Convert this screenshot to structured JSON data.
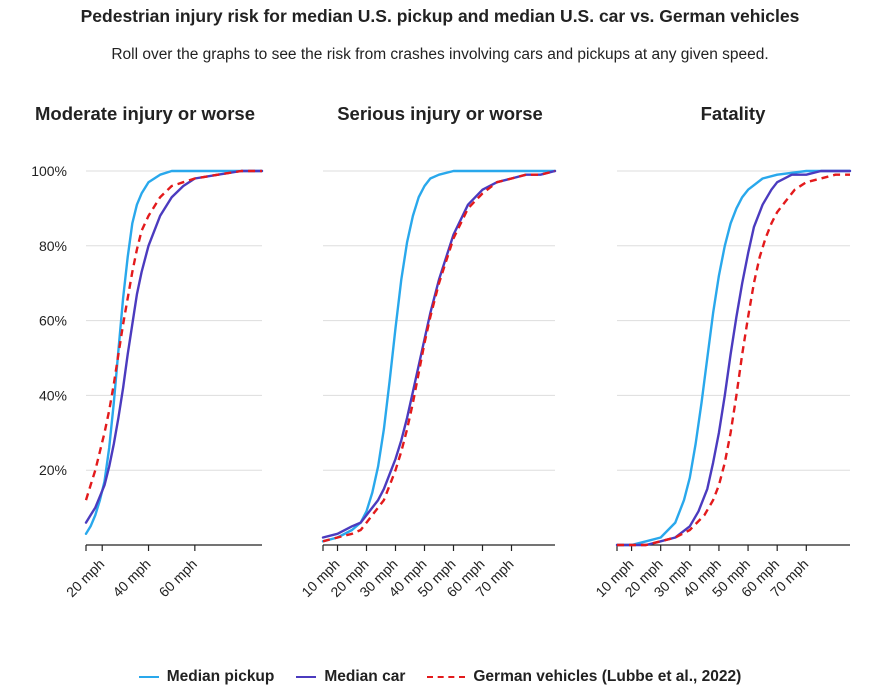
{
  "title": "Pedestrian injury risk for median U.S. pickup and median U.S. car vs. German vehicles",
  "subtitle": "Roll over the graphs to see the risk from crashes involving cars and pickups at any given speed.",
  "colors": {
    "pickup": "#29a8ec",
    "car": "#4b3bbf",
    "german": "#e31a1c",
    "grid": "#dddddd",
    "axis": "#222222"
  },
  "legend": [
    {
      "key": "pickup",
      "label": "Median pickup",
      "dashed": false
    },
    {
      "key": "car",
      "label": "Median car",
      "dashed": false
    },
    {
      "key": "german",
      "label": "German vehicles (Lubbe et al., 2022)",
      "dashed": true
    }
  ],
  "chart_data": [
    {
      "type": "line",
      "title": "Moderate injury or worse",
      "xlim": [
        13,
        89
      ],
      "ylim": [
        0,
        100
      ],
      "xticks": [
        20,
        40,
        60
      ],
      "xtick_labels": [
        "20 mph",
        "40 mph",
        "60 mph"
      ],
      "yticks": [
        20,
        40,
        60,
        80,
        100
      ],
      "ytick_labels": [
        "20%",
        "40%",
        "60%",
        "80%",
        "100%"
      ],
      "series": [
        {
          "name": "Median pickup",
          "key": "pickup",
          "x": [
            13,
            15,
            17,
            19,
            21,
            23,
            25,
            27,
            29,
            31,
            33,
            35,
            37,
            40,
            45,
            50,
            55,
            60,
            70,
            80,
            89
          ],
          "values": [
            3,
            5,
            8,
            12,
            17,
            26,
            38,
            52,
            66,
            77,
            86,
            91,
            94,
            97,
            99,
            100,
            100,
            100,
            100,
            100,
            100
          ]
        },
        {
          "name": "Median car",
          "key": "car",
          "x": [
            13,
            15,
            17,
            19,
            21,
            23,
            25,
            27,
            29,
            31,
            33,
            35,
            37,
            40,
            45,
            50,
            55,
            60,
            70,
            80,
            89
          ],
          "values": [
            6,
            8,
            10,
            13,
            16,
            21,
            27,
            34,
            42,
            51,
            59,
            67,
            73,
            80,
            88,
            93,
            96,
            98,
            99,
            100,
            100
          ]
        },
        {
          "name": "German vehicles (Lubbe et al., 2022)",
          "key": "german",
          "x": [
            13,
            15,
            17,
            19,
            21,
            23,
            25,
            27,
            29,
            31,
            33,
            35,
            37,
            40,
            45,
            50,
            55,
            60,
            70,
            80,
            89
          ],
          "values": [
            12,
            16,
            20,
            25,
            30,
            36,
            43,
            51,
            59,
            66,
            73,
            79,
            84,
            88,
            93,
            96,
            97,
            98,
            99,
            100,
            100
          ]
        }
      ]
    },
    {
      "type": "line",
      "title": "Serious injury or worse",
      "xlim": [
        5,
        85
      ],
      "ylim": [
        0,
        100
      ],
      "xticks": [
        10,
        20,
        30,
        40,
        50,
        60,
        70
      ],
      "xtick_labels": [
        "10 mph",
        "20 mph",
        "30 mph",
        "40 mph",
        "50 mph",
        "60 mph",
        "70 mph"
      ],
      "yticks": [
        20,
        40,
        60,
        80,
        100
      ],
      "ytick_labels": [
        "20%",
        "40%",
        "60%",
        "80%",
        "100%"
      ],
      "series": [
        {
          "name": "Median pickup",
          "key": "pickup",
          "x": [
            5,
            10,
            15,
            18,
            20,
            22,
            24,
            26,
            28,
            30,
            32,
            34,
            36,
            38,
            40,
            42,
            45,
            50,
            55,
            60,
            70,
            85
          ],
          "values": [
            1,
            2,
            4,
            6,
            9,
            14,
            21,
            31,
            44,
            58,
            71,
            81,
            88,
            93,
            96,
            98,
            99,
            100,
            100,
            100,
            100,
            100
          ]
        },
        {
          "name": "Median car",
          "key": "car",
          "x": [
            5,
            10,
            15,
            18,
            20,
            22,
            24,
            26,
            28,
            30,
            32,
            34,
            36,
            38,
            40,
            42,
            45,
            50,
            55,
            60,
            65,
            70,
            75,
            80,
            85
          ],
          "values": [
            2,
            3,
            5,
            6,
            8,
            10,
            12,
            15,
            19,
            23,
            28,
            34,
            41,
            48,
            55,
            62,
            71,
            83,
            91,
            95,
            97,
            98,
            99,
            99,
            100
          ]
        },
        {
          "name": "German vehicles (Lubbe et al., 2022)",
          "key": "german",
          "x": [
            5,
            10,
            15,
            18,
            20,
            22,
            24,
            26,
            28,
            30,
            32,
            34,
            36,
            38,
            40,
            42,
            45,
            50,
            55,
            60,
            65,
            70,
            75,
            80,
            85
          ],
          "values": [
            1,
            2,
            3,
            4,
            6,
            8,
            10,
            12,
            16,
            20,
            25,
            31,
            38,
            46,
            54,
            61,
            70,
            82,
            90,
            94,
            97,
            98,
            99,
            99,
            100
          ]
        }
      ]
    },
    {
      "type": "line",
      "title": "Fatality",
      "xlim": [
        5,
        85
      ],
      "ylim": [
        0,
        100
      ],
      "xticks": [
        10,
        20,
        30,
        40,
        50,
        60,
        70
      ],
      "xtick_labels": [
        "10 mph",
        "20 mph",
        "30 mph",
        "40 mph",
        "50 mph",
        "60 mph",
        "70 mph"
      ],
      "yticks": [
        20,
        40,
        60,
        80,
        100
      ],
      "ytick_labels": [
        "20%",
        "40%",
        "60%",
        "80%",
        "100%"
      ],
      "series": [
        {
          "name": "Median pickup",
          "key": "pickup",
          "x": [
            5,
            10,
            15,
            20,
            25,
            28,
            30,
            32,
            34,
            36,
            38,
            40,
            42,
            44,
            46,
            48,
            50,
            55,
            60,
            70,
            85
          ],
          "values": [
            0,
            0,
            1,
            2,
            6,
            12,
            18,
            27,
            38,
            50,
            62,
            72,
            80,
            86,
            90,
            93,
            95,
            98,
            99,
            100,
            100
          ]
        },
        {
          "name": "Median car",
          "key": "car",
          "x": [
            5,
            10,
            15,
            20,
            25,
            30,
            33,
            36,
            38,
            40,
            42,
            44,
            46,
            48,
            50,
            52,
            55,
            58,
            60,
            65,
            70,
            75,
            85
          ],
          "values": [
            0,
            0,
            0,
            1,
            2,
            5,
            9,
            15,
            22,
            30,
            40,
            51,
            61,
            70,
            78,
            85,
            91,
            95,
            97,
            99,
            99,
            100,
            100
          ]
        },
        {
          "name": "German vehicles (Lubbe et al., 2022)",
          "key": "german",
          "x": [
            5,
            10,
            15,
            20,
            25,
            30,
            35,
            38,
            40,
            42,
            44,
            46,
            48,
            50,
            52,
            54,
            56,
            58,
            60,
            63,
            66,
            70,
            75,
            80,
            85
          ],
          "values": [
            0,
            0,
            0,
            1,
            2,
            4,
            8,
            12,
            16,
            22,
            30,
            40,
            51,
            61,
            70,
            77,
            82,
            86,
            89,
            92,
            95,
            97,
            98,
            99,
            99
          ]
        }
      ]
    }
  ]
}
